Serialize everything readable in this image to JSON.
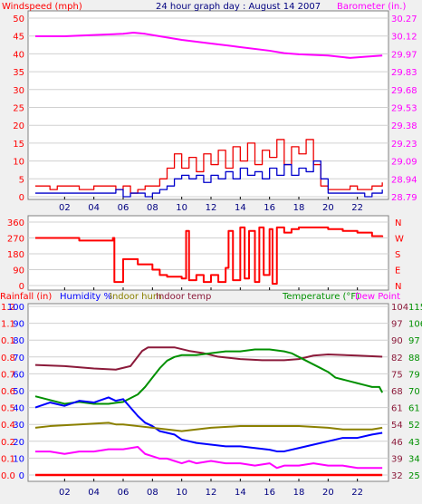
{
  "colors": {
    "wind": "#ff0000",
    "gust": "#ee0000",
    "avg_wind": "#0000cc",
    "barometer": "#ff00ff",
    "direction": "#ff0000",
    "rainfall": "#ff0000",
    "humidity": "#0000ff",
    "indoor_hum": "#8b8000",
    "indoor_temp": "#8b1a3a",
    "temperature": "#009000",
    "dew_point": "#ff00ff"
  },
  "time_ticks": [
    "02",
    "04",
    "06",
    "08",
    "10",
    "12",
    "14",
    "16",
    "18",
    "20",
    "22"
  ],
  "chart_data": [
    {
      "type": "line",
      "title": "24 hour graph day : August 14 2007",
      "left_axis": {
        "label": "Windspeed (mph)",
        "ticks": [
          "0",
          "5",
          "10",
          "15",
          "20",
          "25",
          "30",
          "35",
          "40",
          "45",
          "50"
        ],
        "range": [
          0,
          50
        ]
      },
      "right_axis": {
        "label": "Barometer (in.)",
        "ticks": [
          "28.79",
          "28.94",
          "29.09",
          "29.23",
          "29.38",
          "29.53",
          "29.68",
          "29.83",
          "29.97",
          "30.12",
          "30.27"
        ],
        "range": [
          28.79,
          30.27
        ]
      },
      "x_range_hours": [
        0,
        24
      ],
      "series": [
        {
          "key": "barometer",
          "axis": "right",
          "x": [
            0,
            2,
            4,
            6,
            6.7,
            7.5,
            8.5,
            10,
            12,
            14,
            16,
            17,
            18,
            20,
            21.5,
            22.5,
            23.7
          ],
          "y": [
            30.12,
            30.12,
            30.13,
            30.14,
            30.15,
            30.14,
            30.12,
            30.09,
            30.06,
            30.03,
            30.0,
            29.98,
            29.97,
            29.96,
            29.94,
            29.95,
            29.96
          ]
        },
        {
          "key": "gust",
          "axis": "left",
          "x": [
            0,
            1,
            1.5,
            2,
            3,
            4,
            5,
            5.5,
            6,
            6.5,
            7,
            7.5,
            8,
            8.5,
            9,
            9.5,
            10,
            10.5,
            11,
            11.5,
            12,
            12.5,
            13,
            13.5,
            14,
            14.5,
            15,
            15.5,
            16,
            16.5,
            17,
            17.5,
            18,
            18.5,
            19,
            19.5,
            20,
            21,
            21.5,
            22,
            22.5,
            23,
            23.7
          ],
          "y": [
            3,
            2,
            3,
            3,
            2,
            3,
            3,
            2,
            3,
            1,
            2,
            3,
            3,
            5,
            8,
            12,
            8,
            11,
            7,
            12,
            9,
            13,
            8,
            14,
            10,
            15,
            9,
            13,
            11,
            16,
            9,
            14,
            12,
            16,
            9,
            3,
            2,
            2,
            3,
            2,
            2,
            3,
            4
          ]
        },
        {
          "key": "avg_wind",
          "axis": "left",
          "x": [
            0,
            1,
            2,
            3,
            4,
            5,
            5.5,
            6,
            6.5,
            7,
            7.5,
            8,
            8.5,
            9,
            9.5,
            10,
            10.5,
            11,
            11.5,
            12,
            12.5,
            13,
            13.5,
            14,
            14.5,
            15,
            15.5,
            16,
            16.5,
            17,
            17.5,
            18,
            18.5,
            19,
            19.5,
            20,
            21,
            22,
            22.5,
            23,
            23.7
          ],
          "y": [
            1,
            1,
            1,
            1,
            1,
            1,
            2,
            0,
            1,
            1,
            0,
            1,
            2,
            3,
            5,
            6,
            5,
            6,
            4,
            6,
            5,
            7,
            5,
            8,
            6,
            7,
            5,
            8,
            6,
            9,
            6,
            8,
            7,
            10,
            5,
            1,
            1,
            1,
            0,
            1,
            2
          ]
        }
      ]
    },
    {
      "type": "line",
      "left_axis": {
        "ticks": [
          "0",
          "90",
          "180",
          "270",
          "360"
        ],
        "range": [
          0,
          360
        ]
      },
      "right_axis": {
        "ticks": [
          "N",
          "E",
          "S",
          "W",
          "N"
        ]
      },
      "x_range_hours": [
        0,
        24
      ],
      "series": [
        {
          "key": "direction",
          "x": [
            0,
            2,
            3,
            5,
            5.3,
            5.4,
            6,
            7,
            8,
            8.5,
            9,
            10,
            10.3,
            10.5,
            11,
            11.5,
            12,
            12.5,
            13,
            13.2,
            13.5,
            14,
            14.3,
            14.6,
            15,
            15.3,
            15.6,
            16,
            16.2,
            16.5,
            17,
            17.5,
            18,
            19,
            20,
            21,
            22,
            23,
            23.7
          ],
          "y": [
            270,
            270,
            255,
            255,
            270,
            20,
            150,
            120,
            90,
            60,
            50,
            40,
            310,
            30,
            60,
            20,
            60,
            20,
            100,
            310,
            30,
            330,
            40,
            310,
            20,
            330,
            60,
            320,
            10,
            330,
            300,
            320,
            330,
            330,
            320,
            310,
            300,
            280,
            275
          ]
        }
      ]
    },
    {
      "type": "line",
      "legend": [
        "Rainfall (in)",
        "Humidity %",
        "Indoor hum",
        "Indoor temp",
        "Temperature (°F)",
        "Dew Point"
      ],
      "axes": {
        "humidity": {
          "ticks": [
            "0",
            "10",
            "20",
            "30",
            "40",
            "50",
            "60",
            "70",
            "80",
            "90",
            "100"
          ],
          "range": [
            0,
            100
          ]
        },
        "rainfall": {
          "ticks": [
            "0.0",
            "0.1",
            "0.2",
            "0.4",
            "0.5",
            "0.6",
            "0.7",
            "0.8",
            "0.1",
            "1.1",
            "1.2"
          ],
          "range": [
            0,
            1.2
          ]
        },
        "indoor_temp": {
          "ticks": [
            "32",
            "39",
            "46",
            "54",
            "61",
            "68",
            "75",
            "82",
            "90",
            "97",
            "104"
          ],
          "range": [
            32,
            104
          ]
        },
        "temperature": {
          "ticks": [
            "25",
            "34",
            "43",
            "52",
            "61",
            "70",
            "79",
            "88",
            "97",
            "106",
            "115"
          ],
          "range": [
            25,
            115
          ]
        }
      },
      "x_range_hours": [
        0,
        24
      ],
      "series": [
        {
          "key": "indoor_temp",
          "axis": "indoor_temp",
          "name": "Indoor temp",
          "x": [
            0,
            2,
            4,
            5.5,
            6.5,
            7.3,
            7.7,
            8.5,
            9.5,
            10.5,
            11.5,
            12.5,
            14,
            15.5,
            17,
            18,
            19,
            20,
            22,
            23.7
          ],
          "y": [
            79,
            78.5,
            77.5,
            77,
            78.5,
            85,
            86.5,
            86.5,
            86.5,
            85,
            84,
            82.5,
            81.5,
            81,
            81,
            81.5,
            83,
            83.5,
            83,
            82.5
          ]
        },
        {
          "key": "temperature",
          "axis": "temperature",
          "name": "Temperature (°F)",
          "x": [
            0,
            1,
            2,
            3,
            4,
            5,
            6,
            6.5,
            7,
            7.5,
            8,
            8.5,
            9,
            9.5,
            10,
            11,
            12,
            13,
            14,
            15,
            16,
            17,
            17.5,
            18,
            18.5,
            19,
            19.5,
            20,
            20.5,
            21,
            21.5,
            22,
            22.5,
            23,
            23.5,
            23.7
          ],
          "y": [
            67,
            65,
            63,
            64,
            63,
            63,
            64,
            66,
            68,
            72,
            77,
            82,
            86,
            88,
            89,
            89,
            90,
            91,
            91,
            92,
            92,
            91,
            90,
            88,
            86,
            84,
            82,
            80,
            77,
            76,
            75,
            74,
            73,
            72,
            72,
            69
          ]
        },
        {
          "key": "humidity",
          "axis": "humidity",
          "name": "Humidity %",
          "x": [
            0,
            1,
            2,
            3,
            4,
            5,
            5.5,
            6,
            6.5,
            7,
            7.5,
            8,
            8.5,
            9,
            9.5,
            10,
            11,
            12,
            13,
            14,
            15,
            16,
            16.5,
            17,
            18,
            19,
            20,
            21,
            22,
            23,
            23.7
          ],
          "y": [
            40,
            43,
            41,
            44,
            43,
            46,
            44,
            45,
            40,
            35,
            31,
            29,
            26,
            25,
            24,
            21,
            19,
            18,
            17,
            17,
            16,
            15,
            14,
            14,
            16,
            18,
            20,
            22,
            22,
            24,
            25
          ]
        },
        {
          "key": "indoor_hum",
          "axis": "humidity",
          "name": "Indoor hum",
          "x": [
            0,
            1,
            3,
            5,
            5.5,
            6,
            7,
            8,
            9,
            10,
            11,
            12,
            14,
            16,
            18,
            20,
            21,
            22,
            23,
            23.7
          ],
          "y": [
            28,
            29,
            30,
            31,
            30,
            30,
            29,
            28,
            27,
            26,
            27,
            28,
            29,
            29,
            29,
            28,
            27,
            27,
            27,
            28
          ]
        },
        {
          "key": "dew_point",
          "axis": "indoor_temp",
          "name": "Dew Point",
          "x": [
            0,
            1,
            2,
            3,
            4,
            5,
            6,
            7,
            7.5,
            8,
            8.5,
            9,
            9.5,
            10,
            10.5,
            11,
            12,
            13,
            14,
            15,
            16,
            16.5,
            17,
            18,
            19,
            20,
            21,
            22,
            23,
            23.7
          ],
          "y": [
            42,
            42,
            41,
            42,
            42,
            43,
            43,
            44,
            41,
            40,
            39,
            39,
            38,
            37,
            38,
            37,
            38,
            37,
            37,
            36,
            37,
            35,
            36,
            36,
            37,
            36,
            36,
            35,
            35,
            35
          ]
        },
        {
          "key": "rainfall",
          "axis": "rainfall",
          "name": "Rainfall (in)",
          "x": [
            0,
            23.7
          ],
          "y": [
            0,
            0
          ]
        }
      ]
    }
  ]
}
